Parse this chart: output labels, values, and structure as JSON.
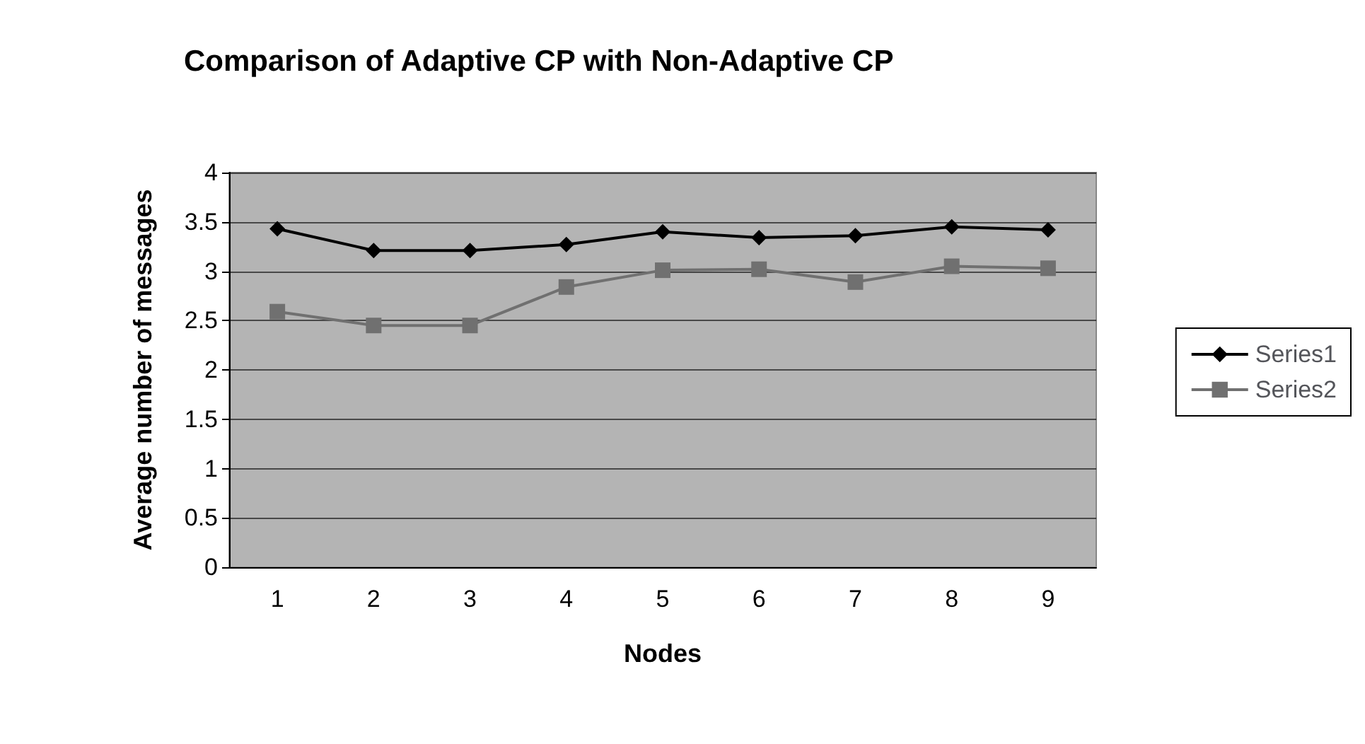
{
  "chart_data": {
    "type": "line",
    "title": "Comparison of Adaptive CP with Non-Adaptive CP",
    "xlabel": "Nodes",
    "ylabel": "Average number of messages",
    "categories": [
      "1",
      "2",
      "3",
      "4",
      "5",
      "6",
      "7",
      "8",
      "9"
    ],
    "series": [
      {
        "name": "Series1",
        "color": "#000000",
        "marker": "diamond",
        "values": [
          3.43,
          3.21,
          3.21,
          3.27,
          3.4,
          3.34,
          3.36,
          3.45,
          3.42
        ]
      },
      {
        "name": "Series2",
        "color": "#707070",
        "marker": "square",
        "values": [
          2.59,
          2.45,
          2.45,
          2.84,
          3.01,
          3.02,
          2.89,
          3.05,
          3.03
        ]
      }
    ],
    "ylim": [
      0,
      4
    ],
    "yticks": [
      0,
      0.5,
      1,
      1.5,
      2,
      2.5,
      3,
      3.5,
      4
    ],
    "grid": "y",
    "legend": "right"
  }
}
